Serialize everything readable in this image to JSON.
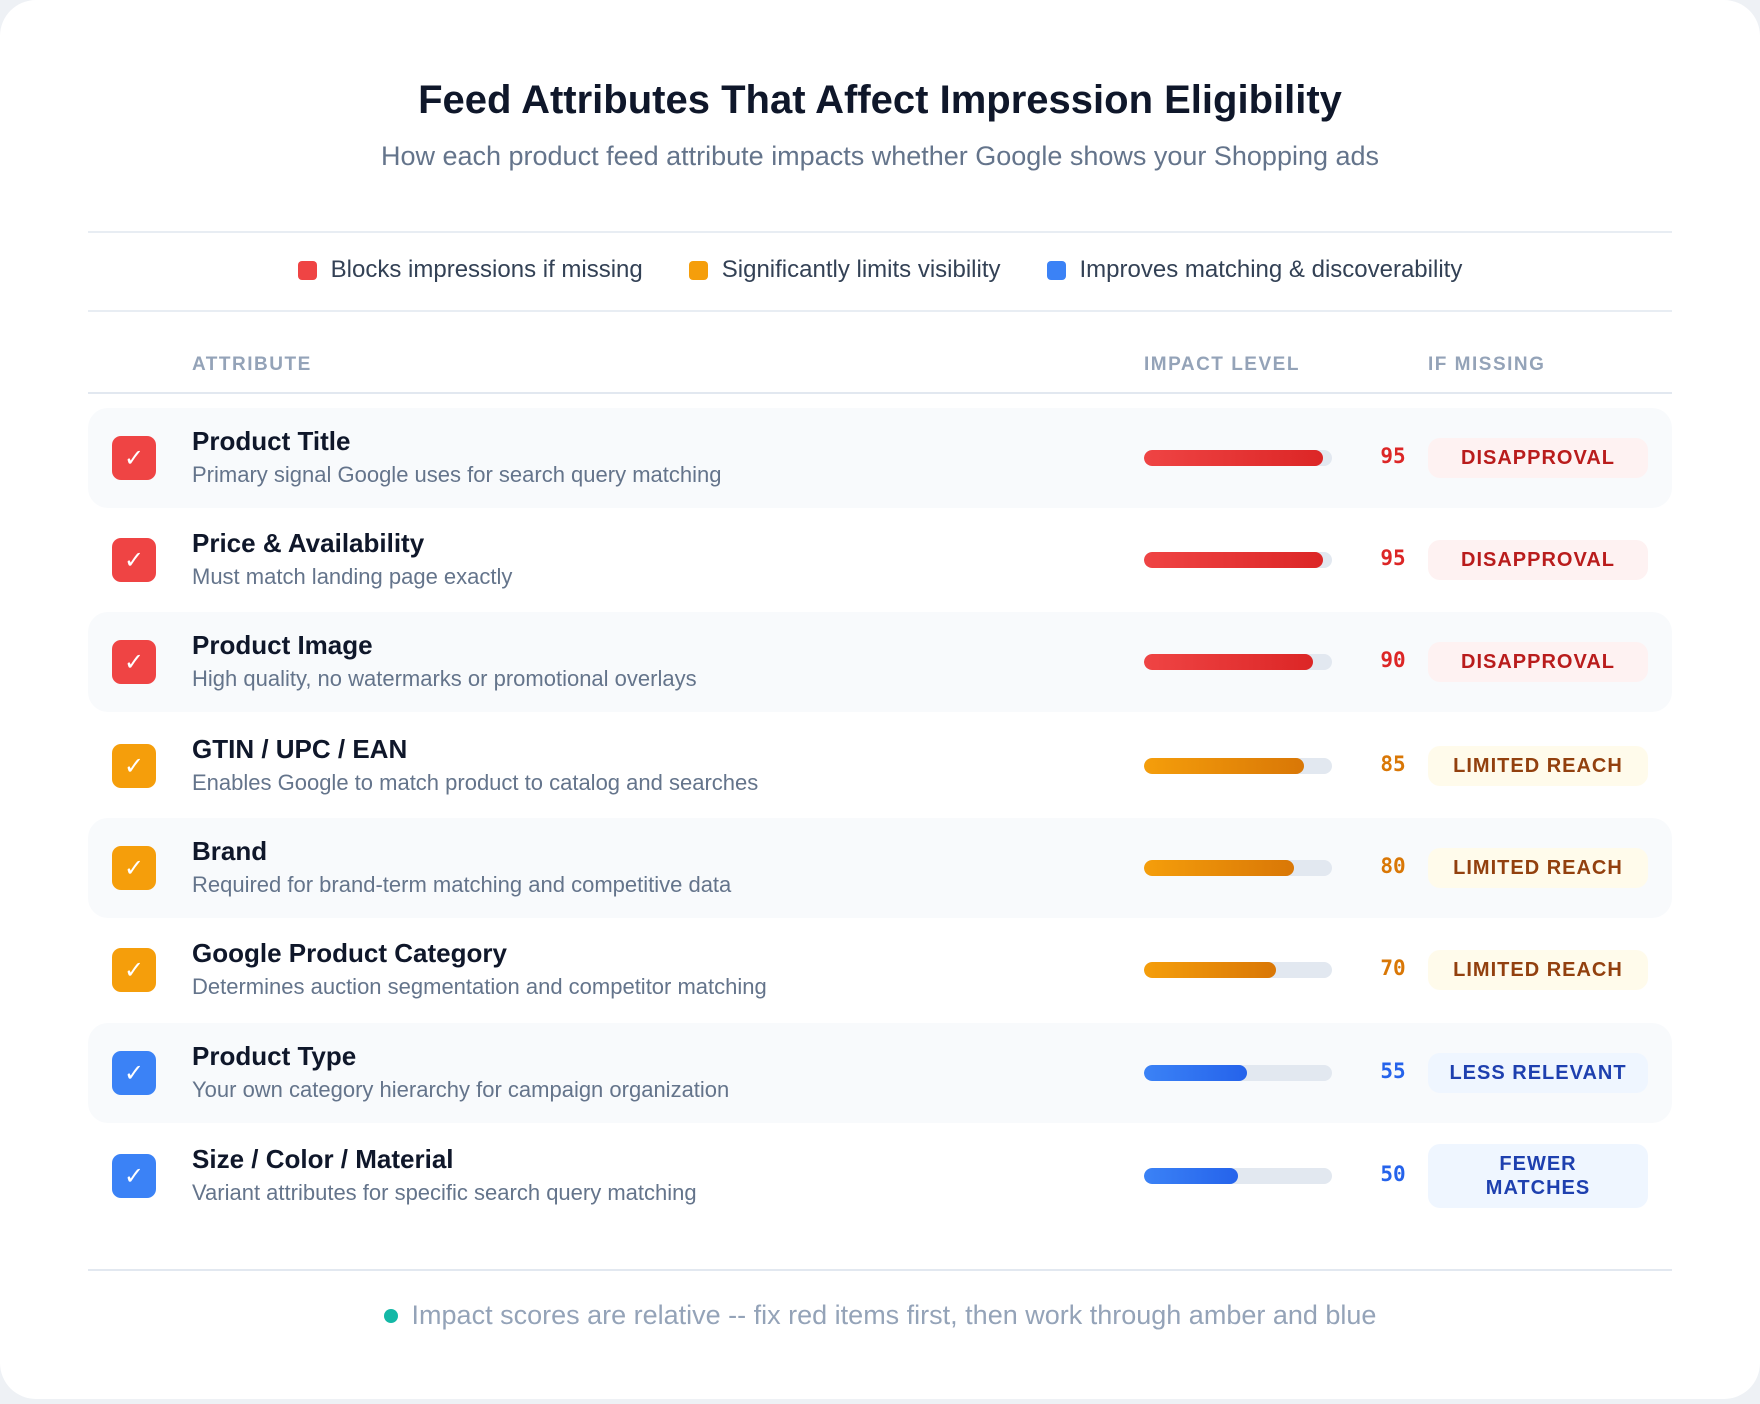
{
  "header": {
    "title": "Feed Attributes That Affect Impression Eligibility",
    "subtitle": "How each product feed attribute impacts whether Google shows your Shopping ads"
  },
  "legend": [
    {
      "label": "Blocks impressions if missing",
      "color": "#ef4444"
    },
    {
      "label": "Significantly limits visibility",
      "color": "#f59e0b"
    },
    {
      "label": "Improves matching & discoverability",
      "color": "#3b82f6"
    }
  ],
  "columns": {
    "attribute": "ATTRIBUTE",
    "impact": "IMPACT LEVEL",
    "missing": "IF MISSING"
  },
  "rows": [
    {
      "title": "Product Title",
      "desc": "Primary signal Google uses for search query matching",
      "score": "95",
      "badge": "DISAPPROVAL",
      "level": "red"
    },
    {
      "title": "Price & Availability",
      "desc": "Must match landing page exactly",
      "score": "95",
      "badge": "DISAPPROVAL",
      "level": "red"
    },
    {
      "title": "Product Image",
      "desc": "High quality, no watermarks or promotional overlays",
      "score": "90",
      "badge": "DISAPPROVAL",
      "level": "red"
    },
    {
      "title": "GTIN / UPC / EAN",
      "desc": "Enables Google to match product to catalog and searches",
      "score": "85",
      "badge": "LIMITED REACH",
      "level": "amber"
    },
    {
      "title": "Brand",
      "desc": "Required for brand-term matching and competitive data",
      "score": "80",
      "badge": "LIMITED REACH",
      "level": "amber"
    },
    {
      "title": "Google Product Category",
      "desc": "Determines auction segmentation and competitor matching",
      "score": "70",
      "badge": "LIMITED REACH",
      "level": "amber"
    },
    {
      "title": "Product Type",
      "desc": "Your own category hierarchy for campaign organization",
      "score": "55",
      "badge": "LESS RELEVANT",
      "level": "blue"
    },
    {
      "title": "Size / Color / Material",
      "desc": "Variant attributes for specific search query matching",
      "score": "50",
      "badge": "FEWER MATCHES",
      "level": "blue"
    }
  ],
  "check_icon": "check-icon",
  "footer": {
    "text": "Impact scores are relative -- fix red items first, then work through amber and blue",
    "dot_color": "#14b8a6"
  }
}
